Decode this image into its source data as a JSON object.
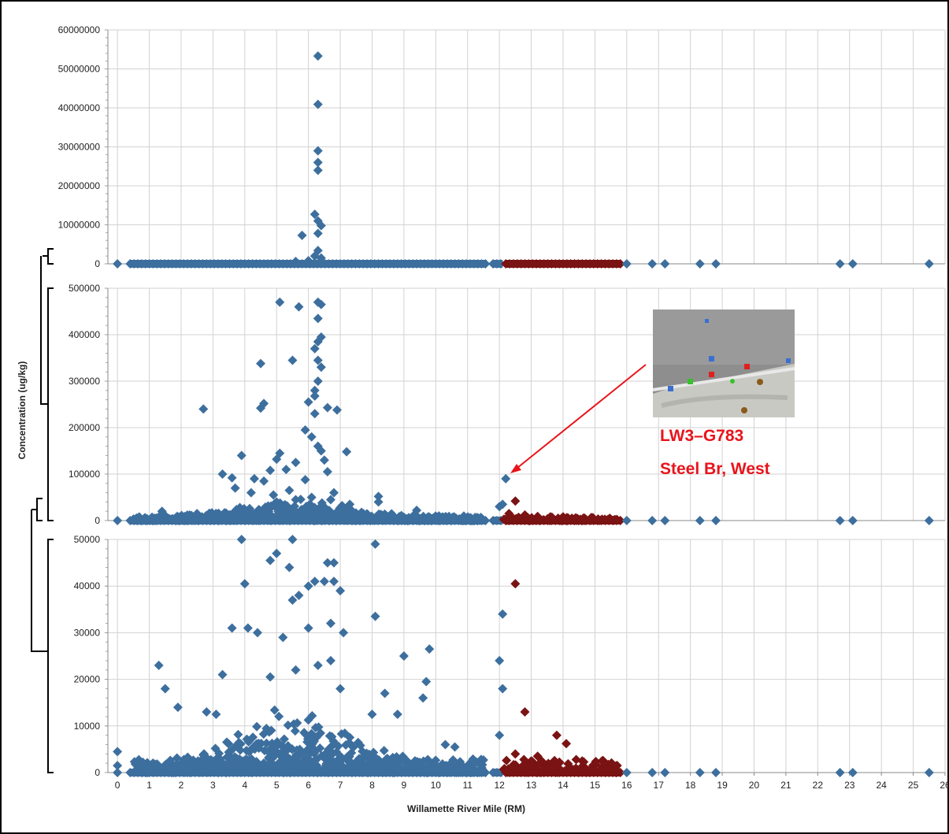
{
  "chart_data": {
    "type": "scatter",
    "xlabel": "Willamette River Mile (RM)",
    "ylabel": "Concentration (ug/kg)",
    "x_ticks": [
      0,
      1,
      2,
      3,
      4,
      5,
      6,
      7,
      8,
      9,
      10,
      11,
      12,
      13,
      14,
      15,
      16,
      17,
      18,
      19,
      20,
      21,
      22,
      23,
      24,
      25,
      26
    ],
    "xlim": [
      -0.3,
      26
    ],
    "grid": true,
    "colors": {
      "blue": "#3d6f9e",
      "red": "#7a1313",
      "grid": "#d2d2d2"
    },
    "panels": [
      {
        "name": "top",
        "ylim": [
          0,
          60000000
        ],
        "y_ticks": [
          0,
          10000000,
          20000000,
          30000000,
          40000000,
          50000000,
          60000000
        ],
        "y_tick_labels": [
          "0",
          "10000000",
          "20000000",
          "30000000",
          "40000000",
          "50000000",
          "60000000"
        ],
        "series": [
          {
            "color_key": "blue",
            "points": [
              [
                6.3,
                53300000
              ],
              [
                6.3,
                40900000
              ],
              [
                6.3,
                29000000
              ],
              [
                6.3,
                26000000
              ],
              [
                6.3,
                24000000
              ],
              [
                6.2,
                12700000
              ],
              [
                6.3,
                11000000
              ],
              [
                6.4,
                9800000
              ],
              [
                6.3,
                7800000
              ],
              [
                5.8,
                7300000
              ],
              [
                6.3,
                3400000
              ],
              [
                6.2,
                2000000
              ],
              [
                6.4,
                1500000
              ],
              [
                6.0,
                800000
              ],
              [
                5.6,
                600000
              ]
            ]
          },
          {
            "color_key": "red",
            "points": []
          }
        ]
      },
      {
        "name": "middle",
        "ylim": [
          0,
          500000
        ],
        "y_ticks": [
          0,
          100000,
          200000,
          300000,
          400000,
          500000
        ],
        "y_tick_labels": [
          "0",
          "100000",
          "200000",
          "300000",
          "400000",
          "500000"
        ],
        "series": [
          {
            "color_key": "blue",
            "points": [
              [
                5.1,
                470000
              ],
              [
                5.7,
                460000
              ],
              [
                6.3,
                470000
              ],
              [
                6.4,
                465000
              ],
              [
                6.3,
                435000
              ],
              [
                6.4,
                395000
              ],
              [
                6.3,
                385000
              ],
              [
                6.2,
                370000
              ],
              [
                5.5,
                345000
              ],
              [
                4.5,
                338000
              ],
              [
                6.3,
                345000
              ],
              [
                6.4,
                330000
              ],
              [
                6.3,
                300000
              ],
              [
                6.2,
                280000
              ],
              [
                6.2,
                268000
              ],
              [
                4.6,
                252000
              ],
              [
                4.5,
                242000
              ],
              [
                2.7,
                240000
              ],
              [
                6.0,
                255000
              ],
              [
                6.6,
                243000
              ],
              [
                6.9,
                238000
              ],
              [
                6.2,
                230000
              ],
              [
                5.9,
                195000
              ],
              [
                6.1,
                180000
              ],
              [
                6.3,
                160000
              ],
              [
                6.4,
                150000
              ],
              [
                7.2,
                148000
              ],
              [
                5.1,
                145000
              ],
              [
                3.9,
                140000
              ],
              [
                5.0,
                132000
              ],
              [
                5.6,
                125000
              ],
              [
                6.5,
                130000
              ],
              [
                5.3,
                110000
              ],
              [
                4.8,
                108000
              ],
              [
                6.6,
                105000
              ],
              [
                3.3,
                100000
              ],
              [
                3.6,
                92000
              ],
              [
                4.3,
                90000
              ],
              [
                4.6,
                85000
              ],
              [
                5.9,
                88000
              ],
              [
                3.7,
                70000
              ],
              [
                4.2,
                60000
              ],
              [
                4.9,
                55000
              ],
              [
                5.4,
                65000
              ],
              [
                6.8,
                60000
              ],
              [
                8.2,
                52000
              ],
              [
                8.2,
                40000
              ],
              [
                7.3,
                35000
              ],
              [
                9.4,
                22000
              ],
              [
                1.4,
                20000
              ],
              [
                2.5,
                15000
              ],
              [
                10.1,
                10000
              ],
              [
                2.9,
                15000
              ],
              [
                5.0,
                40000
              ],
              [
                5.6,
                45000
              ],
              [
                6.1,
                50000
              ],
              [
                6.7,
                45000
              ],
              [
                12.2,
                90000
              ],
              [
                12.0,
                30000
              ],
              [
                12.1,
                35000
              ]
            ]
          },
          {
            "color_key": "red",
            "points": [
              [
                12.5,
                42000
              ],
              [
                12.3,
                15000
              ],
              [
                12.8,
                12000
              ],
              [
                13.2,
                9000
              ],
              [
                13.6,
                8000
              ],
              [
                14.0,
                8000
              ],
              [
                14.4,
                6000
              ],
              [
                12.6,
                7000
              ]
            ]
          }
        ]
      },
      {
        "name": "bottom",
        "ylim": [
          0,
          50000
        ],
        "y_ticks": [
          0,
          10000,
          20000,
          30000,
          40000,
          50000
        ],
        "y_tick_labels": [
          "0",
          "10000",
          "20000",
          "30000",
          "40000",
          "50000"
        ],
        "series": [
          {
            "color_key": "blue",
            "points": [
              [
                3.9,
                50000
              ],
              [
                5.5,
                50000
              ],
              [
                8.1,
                49000
              ],
              [
                5.0,
                47000
              ],
              [
                4.8,
                45500
              ],
              [
                5.4,
                44000
              ],
              [
                6.6,
                45000
              ],
              [
                6.8,
                45000
              ],
              [
                4.0,
                40500
              ],
              [
                6.2,
                41000
              ],
              [
                6.5,
                41000
              ],
              [
                6.8,
                41000
              ],
              [
                7.0,
                39000
              ],
              [
                6.0,
                40000
              ],
              [
                5.7,
                38000
              ],
              [
                5.5,
                37000
              ],
              [
                8.1,
                33500
              ],
              [
                12.1,
                34000
              ],
              [
                3.6,
                31000
              ],
              [
                4.1,
                31000
              ],
              [
                4.4,
                30000
              ],
              [
                5.2,
                29000
              ],
              [
                6.0,
                31000
              ],
              [
                6.7,
                32000
              ],
              [
                7.1,
                30000
              ],
              [
                9.0,
                25000
              ],
              [
                9.8,
                26500
              ],
              [
                12.0,
                24000
              ],
              [
                1.3,
                23000
              ],
              [
                1.5,
                18000
              ],
              [
                12.1,
                18000
              ],
              [
                9.7,
                19500
              ],
              [
                8.4,
                17000
              ],
              [
                9.6,
                16000
              ],
              [
                1.9,
                14000
              ],
              [
                2.8,
                13000
              ],
              [
                3.1,
                12500
              ],
              [
                8.0,
                12500
              ],
              [
                8.8,
                12500
              ],
              [
                10.3,
                6000
              ],
              [
                10.6,
                5500
              ],
              [
                12.0,
                8000
              ],
              [
                0.0,
                4500
              ],
              [
                0.0,
                1500
              ],
              [
                3.3,
                21000
              ],
              [
                4.8,
                20500
              ],
              [
                5.6,
                22000
              ],
              [
                6.3,
                23000
              ],
              [
                6.7,
                24000
              ],
              [
                7.0,
                18000
              ]
            ]
          },
          {
            "color_key": "red",
            "points": [
              [
                12.5,
                40500
              ],
              [
                12.8,
                13000
              ],
              [
                13.8,
                8000
              ],
              [
                14.1,
                6200
              ],
              [
                12.5,
                4000
              ],
              [
                13.2,
                3500
              ],
              [
                13.0,
                2500
              ],
              [
                14.6,
                2500
              ],
              [
                15.3,
                2000
              ],
              [
                15.7,
                1500
              ]
            ]
          }
        ]
      }
    ],
    "baseline": {
      "blue_x_ranges": [
        [
          0.4,
          11.6
        ],
        [
          11.8,
          12.1
        ]
      ],
      "blue_isolated_x": [
        0.0,
        16.0,
        16.8,
        17.2,
        18.3,
        18.8,
        22.7,
        23.1,
        25.5
      ],
      "red_x_ranges": [
        [
          12.2,
          15.8
        ]
      ]
    },
    "annotation": {
      "line1": "LW3–G783",
      "line2": "Steel Br, West",
      "target": {
        "x": 12.5,
        "y": 100000
      }
    }
  }
}
